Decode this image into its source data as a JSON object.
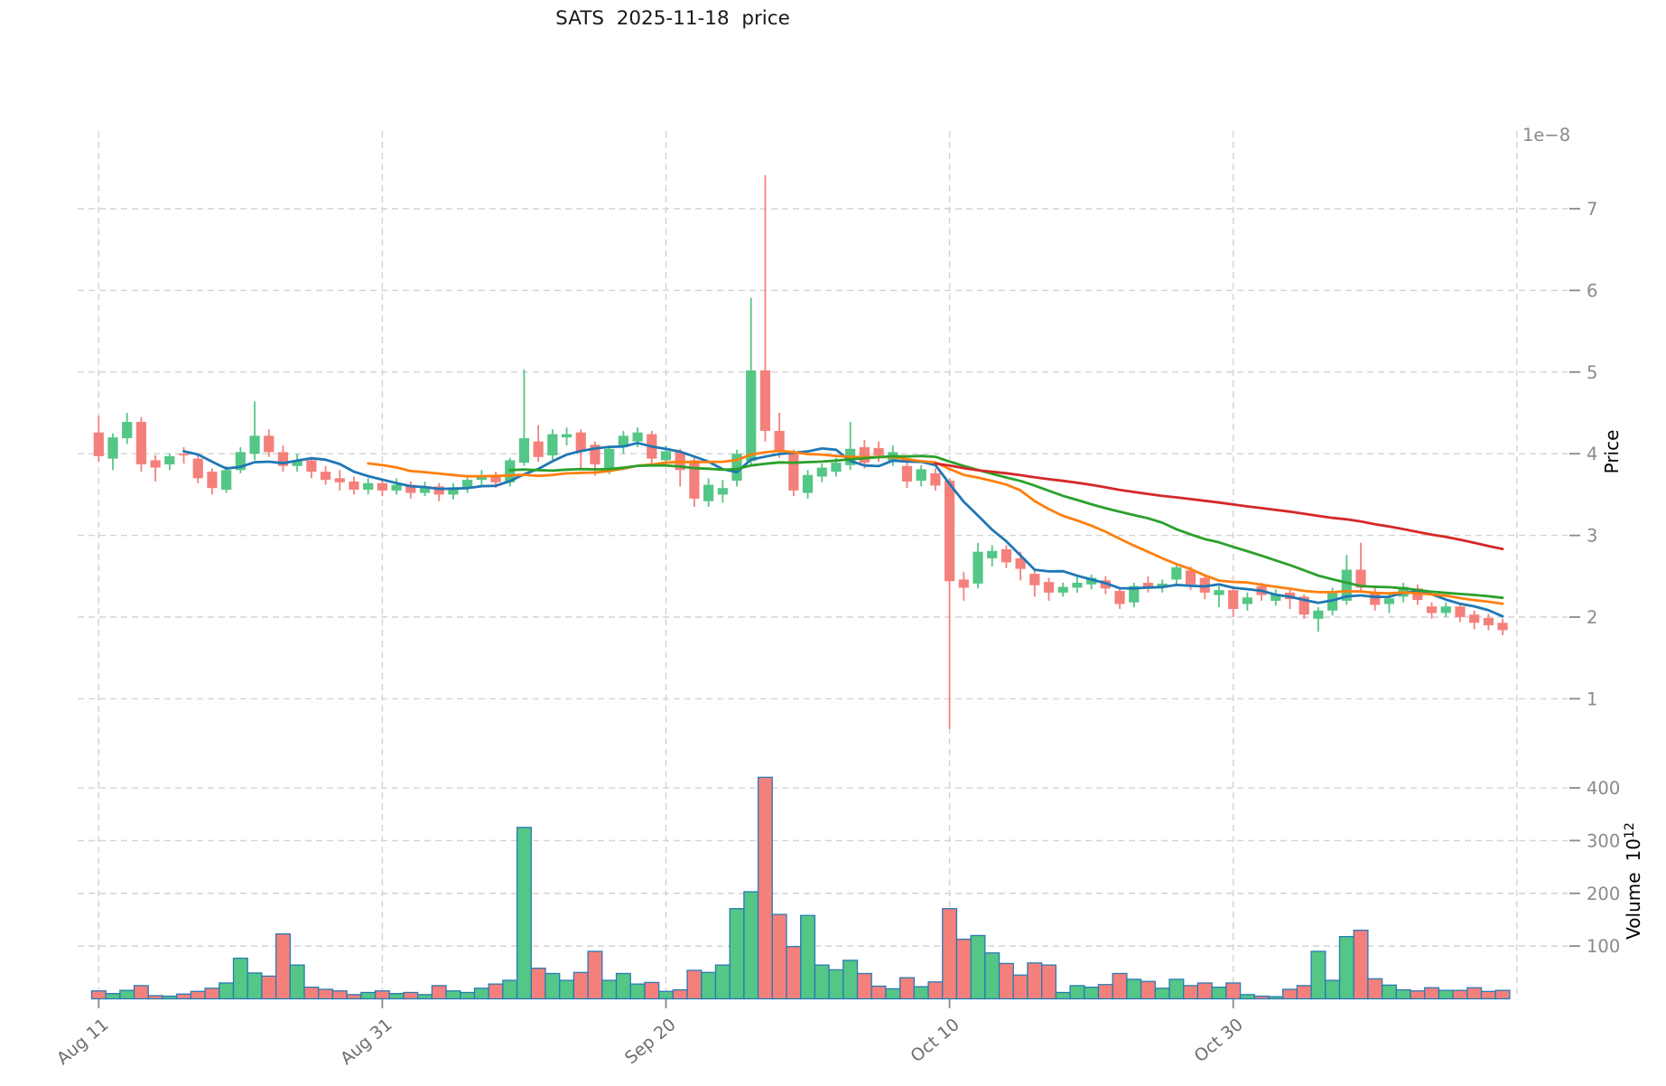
{
  "chart_data": {
    "type": "candlestick+volume",
    "title": "SATS  2025-11-18  price",
    "x_axis": {
      "tick_labels": [
        "Aug 11",
        "Aug 31",
        "Sep 20",
        "Oct 10",
        "Oct 30"
      ],
      "tick_indices": [
        0,
        20,
        40,
        60,
        80
      ],
      "extra_gridline_index": 100,
      "n_points": 100
    },
    "price_axis": {
      "label": "Price",
      "scale_note": "1e−8",
      "ticks": [
        1,
        2,
        3,
        4,
        5,
        6,
        7
      ],
      "range": [
        0.5,
        7.9
      ]
    },
    "volume_axis": {
      "label": "Volume",
      "unit_base": "10",
      "unit_exp": "12",
      "ticks": [
        100,
        200,
        300,
        400
      ],
      "range": [
        0,
        460
      ]
    },
    "series_ohlcv": [
      [
        4.26,
        4.46,
        3.9,
        3.97,
        15
      ],
      [
        3.94,
        4.25,
        3.8,
        4.2,
        10
      ],
      [
        4.19,
        4.5,
        4.12,
        4.39,
        16
      ],
      [
        4.39,
        4.45,
        3.78,
        3.87,
        25
      ],
      [
        3.92,
        3.98,
        3.66,
        3.83,
        6
      ],
      [
        3.87,
        4.0,
        3.8,
        3.97,
        5
      ],
      [
        4.0,
        4.08,
        3.88,
        3.98,
        9
      ],
      [
        3.94,
        3.98,
        3.64,
        3.7,
        14
      ],
      [
        3.78,
        3.82,
        3.5,
        3.58,
        20
      ],
      [
        3.56,
        3.85,
        3.52,
        3.8,
        30
      ],
      [
        3.8,
        4.08,
        3.76,
        4.02,
        77
      ],
      [
        4.0,
        4.64,
        3.92,
        4.22,
        49
      ],
      [
        4.22,
        4.3,
        3.96,
        4.02,
        43
      ],
      [
        4.02,
        4.1,
        3.78,
        3.85,
        123
      ],
      [
        3.85,
        4.0,
        3.78,
        3.92,
        64
      ],
      [
        3.92,
        3.96,
        3.7,
        3.78,
        22
      ],
      [
        3.78,
        3.85,
        3.62,
        3.68,
        18
      ],
      [
        3.7,
        3.8,
        3.55,
        3.65,
        15
      ],
      [
        3.66,
        3.72,
        3.5,
        3.56,
        8
      ],
      [
        3.56,
        3.7,
        3.5,
        3.64,
        12
      ],
      [
        3.64,
        3.68,
        3.48,
        3.55,
        15
      ],
      [
        3.55,
        3.7,
        3.5,
        3.62,
        10
      ],
      [
        3.62,
        3.66,
        3.45,
        3.52,
        12
      ],
      [
        3.52,
        3.66,
        3.48,
        3.6,
        8
      ],
      [
        3.6,
        3.64,
        3.42,
        3.5,
        25
      ],
      [
        3.5,
        3.64,
        3.44,
        3.58,
        15
      ],
      [
        3.58,
        3.74,
        3.52,
        3.68,
        12
      ],
      [
        3.68,
        3.8,
        3.6,
        3.72,
        20
      ],
      [
        3.72,
        3.78,
        3.58,
        3.65,
        28
      ],
      [
        3.65,
        3.95,
        3.6,
        3.92,
        35
      ],
      [
        3.89,
        5.03,
        3.85,
        4.19,
        325
      ],
      [
        4.15,
        4.35,
        3.9,
        3.96,
        58
      ],
      [
        3.98,
        4.3,
        3.92,
        4.24,
        48
      ],
      [
        4.2,
        4.32,
        4.1,
        4.24,
        35
      ],
      [
        4.26,
        4.3,
        3.81,
        4.03,
        50
      ],
      [
        4.11,
        4.15,
        3.73,
        3.87,
        90
      ],
      [
        3.81,
        4.1,
        3.75,
        4.06,
        35
      ],
      [
        4.08,
        4.28,
        4.0,
        4.22,
        48
      ],
      [
        4.15,
        4.32,
        4.08,
        4.26,
        28
      ],
      [
        4.24,
        4.28,
        3.88,
        3.94,
        31
      ],
      [
        3.92,
        4.1,
        3.85,
        4.03,
        14
      ],
      [
        4.02,
        4.06,
        3.6,
        3.8,
        17
      ],
      [
        3.92,
        3.96,
        3.35,
        3.45,
        54
      ],
      [
        3.42,
        3.7,
        3.35,
        3.62,
        50
      ],
      [
        3.5,
        3.68,
        3.4,
        3.58,
        64
      ],
      [
        3.67,
        4.05,
        3.6,
        4.0,
        171
      ],
      [
        3.91,
        5.91,
        3.85,
        5.02,
        203
      ],
      [
        5.02,
        7.41,
        4.15,
        4.28,
        420
      ],
      [
        4.28,
        4.5,
        3.95,
        4.03,
        160
      ],
      [
        4.0,
        4.05,
        3.48,
        3.55,
        99
      ],
      [
        3.52,
        3.8,
        3.45,
        3.74,
        158
      ],
      [
        3.72,
        3.88,
        3.65,
        3.83,
        64
      ],
      [
        3.78,
        3.95,
        3.72,
        3.89,
        55
      ],
      [
        3.86,
        4.39,
        3.8,
        4.06,
        73
      ],
      [
        4.08,
        4.17,
        3.82,
        3.89,
        48
      ],
      [
        4.07,
        4.15,
        3.9,
        3.98,
        24
      ],
      [
        3.91,
        4.1,
        3.85,
        4.02,
        19
      ],
      [
        3.85,
        3.9,
        3.58,
        3.66,
        40
      ],
      [
        3.67,
        3.86,
        3.6,
        3.81,
        23
      ],
      [
        3.76,
        3.82,
        3.55,
        3.61,
        32
      ],
      [
        3.67,
        3.7,
        0.63,
        2.44,
        171
      ],
      [
        2.46,
        2.55,
        2.2,
        2.36,
        113
      ],
      [
        2.41,
        2.91,
        2.35,
        2.8,
        120
      ],
      [
        2.72,
        2.88,
        2.62,
        2.81,
        87
      ],
      [
        2.83,
        2.88,
        2.6,
        2.67,
        67
      ],
      [
        2.72,
        2.8,
        2.45,
        2.59,
        45
      ],
      [
        2.53,
        2.58,
        2.25,
        2.39,
        68
      ],
      [
        2.43,
        2.48,
        2.2,
        2.3,
        64
      ],
      [
        2.3,
        2.42,
        2.25,
        2.37,
        12
      ],
      [
        2.36,
        2.5,
        2.3,
        2.42,
        25
      ],
      [
        2.4,
        2.52,
        2.34,
        2.48,
        22
      ],
      [
        2.45,
        2.5,
        2.28,
        2.35,
        27
      ],
      [
        2.32,
        2.36,
        2.1,
        2.16,
        48
      ],
      [
        2.18,
        2.42,
        2.12,
        2.38,
        37
      ],
      [
        2.42,
        2.5,
        2.3,
        2.37,
        33
      ],
      [
        2.36,
        2.46,
        2.3,
        2.41,
        20
      ],
      [
        2.46,
        2.66,
        2.4,
        2.61,
        37
      ],
      [
        2.57,
        2.62,
        2.33,
        2.4,
        25
      ],
      [
        2.48,
        2.52,
        2.22,
        2.3,
        30
      ],
      [
        2.27,
        2.38,
        2.12,
        2.33,
        22
      ],
      [
        2.33,
        2.38,
        2.0,
        2.1,
        30
      ],
      [
        2.16,
        2.3,
        2.08,
        2.24,
        8
      ],
      [
        2.38,
        2.42,
        2.2,
        2.27,
        5
      ],
      [
        2.2,
        2.34,
        2.14,
        2.28,
        4
      ],
      [
        2.3,
        2.36,
        2.1,
        2.22,
        18
      ],
      [
        2.25,
        2.28,
        1.98,
        2.03,
        25
      ],
      [
        1.98,
        2.12,
        1.82,
        2.08,
        90
      ],
      [
        2.08,
        2.36,
        2.02,
        2.31,
        35
      ],
      [
        2.2,
        2.76,
        2.15,
        2.58,
        118
      ],
      [
        2.58,
        2.91,
        2.3,
        2.36,
        130
      ],
      [
        2.3,
        2.36,
        2.08,
        2.15,
        38
      ],
      [
        2.16,
        2.28,
        2.05,
        2.23,
        26
      ],
      [
        2.25,
        2.42,
        2.18,
        2.37,
        17
      ],
      [
        2.35,
        2.4,
        2.15,
        2.21,
        15
      ],
      [
        2.13,
        2.18,
        1.98,
        2.05,
        21
      ],
      [
        2.05,
        2.18,
        2.0,
        2.13,
        16
      ],
      [
        2.13,
        2.16,
        1.94,
        2.0,
        16
      ],
      [
        2.03,
        2.08,
        1.85,
        1.93,
        21
      ],
      [
        1.99,
        2.04,
        1.84,
        1.9,
        14
      ],
      [
        1.93,
        1.98,
        1.78,
        1.84,
        16
      ]
    ],
    "moving_averages": [
      {
        "name": "MA7",
        "window": 7,
        "color": "#1f77b4"
      },
      {
        "name": "MA20",
        "window": 20,
        "color": "#ff7f0e"
      },
      {
        "name": "MA30",
        "window": 30,
        "color": "#2ca02c"
      },
      {
        "name": "MA60",
        "window": 60,
        "color": "#d62728"
      }
    ],
    "colors": {
      "up": "#54c686",
      "down": "#f4807b",
      "volume_edge": "#2a7ab5",
      "grid": "#d3d3d3",
      "tick_text": "#8a8a8a",
      "xlabel_text": "#6e6e6e",
      "axis_label_text": "#000000",
      "title_text": "#1a1a1a"
    },
    "legend": "none",
    "grid": "dashed"
  }
}
